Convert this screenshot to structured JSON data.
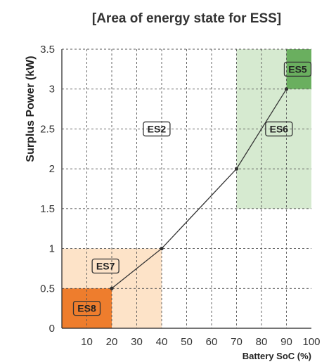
{
  "chart_data": {
    "type": "line",
    "title": "[Area of energy state for ESS]",
    "xlabel": "Battery SoC (%)",
    "ylabel": "Surplus Power (kW)",
    "xlim": [
      0,
      100
    ],
    "ylim": [
      0,
      3.5
    ],
    "x_ticks": [
      10,
      20,
      30,
      40,
      50,
      60,
      70,
      80,
      90,
      100
    ],
    "y_ticks": [
      0,
      0.5,
      1,
      1.5,
      2,
      2.5,
      3,
      3.5
    ],
    "x_tick_labels": [
      "10",
      "20",
      "30",
      "40",
      "50",
      "60",
      "70",
      "80",
      "90",
      "100"
    ],
    "y_tick_labels": [
      "0",
      "0.5",
      "1",
      "1.5",
      "2",
      "2.5",
      "3",
      "3.5"
    ],
    "grid": true,
    "series": [
      {
        "x": [
          20,
          40,
          70,
          90
        ],
        "y": [
          0.5,
          1,
          2,
          3
        ]
      }
    ],
    "regions": [
      {
        "label": "ES7",
        "x": [
          0,
          40
        ],
        "y": [
          0,
          1
        ],
        "color": "#fde3c8"
      },
      {
        "label": "ES8",
        "x": [
          0,
          20
        ],
        "y": [
          0,
          0.5
        ],
        "color": "#ee7d2d"
      },
      {
        "label": "ES6",
        "x": [
          70,
          100
        ],
        "y": [
          1.5,
          3.5
        ],
        "color": "#d6ead0"
      },
      {
        "label": "ES5",
        "x": [
          90,
          100
        ],
        "y": [
          3,
          3.5
        ],
        "color": "#6aaf5f"
      }
    ],
    "zone_labels": [
      {
        "text": "ES2",
        "x": 38,
        "y": 2.5
      },
      {
        "text": "ES6",
        "x": 87,
        "y": 2.5
      },
      {
        "text": "ES5",
        "x": 94.5,
        "y": 3.25
      },
      {
        "text": "ES7",
        "x": 17.5,
        "y": 0.78
      },
      {
        "text": "ES8",
        "x": 10,
        "y": 0.25
      }
    ],
    "colors": {
      "line": "#333333",
      "grid": "#555555",
      "axis": "#222222"
    }
  }
}
